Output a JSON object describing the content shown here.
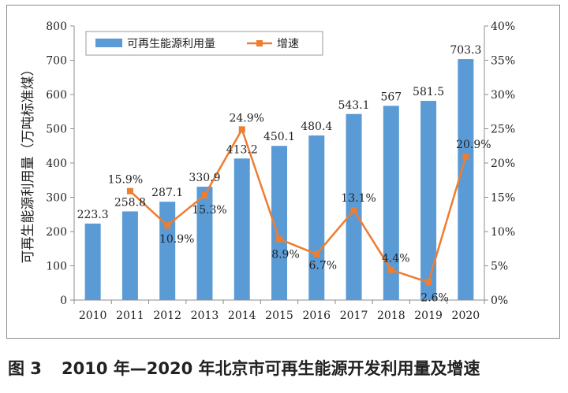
{
  "chart_data": {
    "type": "bar+line",
    "categories": [
      "2010",
      "2011",
      "2012",
      "2013",
      "2014",
      "2015",
      "2016",
      "2017",
      "2018",
      "2019",
      "2020"
    ],
    "series": [
      {
        "name": "可再生能源利用量",
        "type": "bar",
        "axis": "left",
        "color": "#5b9bd5",
        "values": [
          223.3,
          258.8,
          287.1,
          330.9,
          413.2,
          450.1,
          480.4,
          543.1,
          567,
          581.5,
          703.3
        ],
        "labels": [
          "223.3",
          "258.8",
          "287.1",
          "330.9",
          "413.2",
          "450.1",
          "480.4",
          "543.1",
          "567",
          "581.5",
          "703.3"
        ]
      },
      {
        "name": "增速",
        "type": "line",
        "axis": "right",
        "color": "#ed7d31",
        "values": [
          null,
          15.9,
          10.9,
          15.3,
          24.9,
          8.9,
          6.7,
          13.1,
          4.4,
          2.6,
          20.9
        ],
        "labels": [
          null,
          "15.9%",
          "10.9%",
          "15.3%",
          "24.9%",
          "8.9%",
          "6.7%",
          "13.1%",
          "4.4%",
          "2.6%",
          "20.9%"
        ]
      }
    ],
    "ylabel": "可再生能源利用量（万吨标准煤）",
    "ylim": [
      0,
      800
    ],
    "yticks": [
      "0",
      "100",
      "200",
      "300",
      "400",
      "500",
      "600",
      "700",
      "800"
    ],
    "y2lim": [
      0,
      40
    ],
    "y2ticks": [
      "0%",
      "5%",
      "10%",
      "15%",
      "20%",
      "25%",
      "30%",
      "35%",
      "40%"
    ],
    "legend_position": "top-left",
    "grid": false
  },
  "caption": {
    "figure_no": "图 3",
    "text": "2010 年—2020 年北京市可再生能源开发利用量及增速"
  }
}
